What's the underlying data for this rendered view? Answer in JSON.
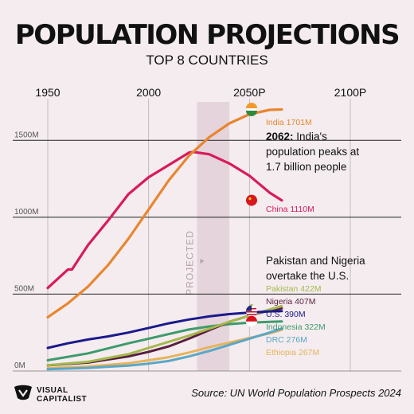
{
  "header": {
    "title": "POPULATION PROJECTIONS",
    "subtitle": "TOP 8 COUNTRIES"
  },
  "footer": {
    "brand_line1": "VISUAL",
    "brand_line2": "CAPITALIST",
    "source": "Source: UN World Population Prospects 2024"
  },
  "chart_data": {
    "type": "line",
    "x_ticks": [
      "1950",
      "2000",
      "2050P",
      "2100P"
    ],
    "y_ticks": [
      "1500M",
      "1000M",
      "500M",
      "0M"
    ],
    "y_tick_values": [
      1500,
      1000,
      500,
      0
    ],
    "x_tick_values": [
      1950,
      2000,
      2050,
      2100
    ],
    "xlim": [
      1950,
      2100
    ],
    "ylim": [
      0,
      1750
    ],
    "projected_label": "PROJECTED",
    "projected_range": [
      2024,
      2040
    ],
    "series": [
      {
        "name": "India",
        "end_label": "India 1701M",
        "color": "#e8862f",
        "x": [
          1950,
          1960,
          1970,
          1980,
          1990,
          2000,
          2010,
          2020,
          2030,
          2040,
          2050,
          2060,
          2066
        ],
        "y": [
          350,
          440,
          550,
          690,
          860,
          1050,
          1240,
          1400,
          1520,
          1610,
          1670,
          1698,
          1701
        ]
      },
      {
        "name": "China",
        "end_label": "China 1110M",
        "color": "#d81b5a",
        "x": [
          1950,
          1955,
          1960,
          1962,
          1965,
          1970,
          1980,
          1990,
          2000,
          2010,
          2020,
          2022,
          2030,
          2040,
          2050,
          2060,
          2066
        ],
        "y": [
          540,
          600,
          660,
          660,
          720,
          820,
          980,
          1150,
          1260,
          1340,
          1420,
          1425,
          1410,
          1350,
          1270,
          1160,
          1110
        ]
      },
      {
        "name": "Pakistan",
        "end_label": "Pakistan 422M",
        "color": "#a4b84c",
        "x": [
          1950,
          1970,
          1990,
          2000,
          2010,
          2020,
          2030,
          2040,
          2050,
          2060,
          2066
        ],
        "y": [
          38,
          60,
          110,
          150,
          190,
          230,
          275,
          320,
          360,
          400,
          422
        ]
      },
      {
        "name": "Nigeria",
        "end_label": "Nigeria 407M",
        "color": "#5a1f3f",
        "x": [
          1950,
          1970,
          1990,
          2000,
          2010,
          2020,
          2030,
          2040,
          2050,
          2060,
          2066
        ],
        "y": [
          37,
          55,
          95,
          125,
          160,
          210,
          265,
          320,
          360,
          395,
          407
        ]
      },
      {
        "name": "U.S.",
        "end_label": "U.S. 390M",
        "color": "#1a1a8c",
        "x": [
          1950,
          1960,
          1970,
          1980,
          1990,
          2000,
          2010,
          2020,
          2030,
          2040,
          2050,
          2060,
          2066
        ],
        "y": [
          150,
          180,
          205,
          225,
          250,
          280,
          310,
          335,
          355,
          370,
          380,
          388,
          390
        ]
      },
      {
        "name": "Indonesia",
        "end_label": "Indonesia 322M",
        "color": "#3d9a6b",
        "x": [
          1950,
          1970,
          1990,
          2000,
          2010,
          2020,
          2030,
          2040,
          2050,
          2060,
          2066
        ],
        "y": [
          70,
          115,
          180,
          210,
          240,
          270,
          290,
          305,
          315,
          320,
          322
        ]
      },
      {
        "name": "DRC",
        "end_label": "DRC 276M",
        "color": "#5aa7c6",
        "x": [
          1950,
          1970,
          1990,
          2000,
          2010,
          2020,
          2030,
          2040,
          2050,
          2060,
          2066
        ],
        "y": [
          12,
          20,
          35,
          48,
          65,
          95,
          130,
          170,
          210,
          250,
          276
        ]
      },
      {
        "name": "Ethiopia",
        "end_label": "Ethiopia 267M",
        "color": "#e6b45c",
        "x": [
          1950,
          1970,
          1990,
          2000,
          2010,
          2020,
          2030,
          2040,
          2050,
          2060,
          2066
        ],
        "y": [
          18,
          30,
          50,
          70,
          90,
          120,
          155,
          185,
          215,
          245,
          267
        ]
      }
    ],
    "annotations": [
      {
        "bold": "2062:",
        "lines": [
          " India's",
          "population peaks at",
          "1.7 billion people"
        ]
      },
      {
        "bold": "",
        "lines": [
          "Pakistan and Nigeria",
          "overtake the U.S."
        ]
      }
    ]
  }
}
